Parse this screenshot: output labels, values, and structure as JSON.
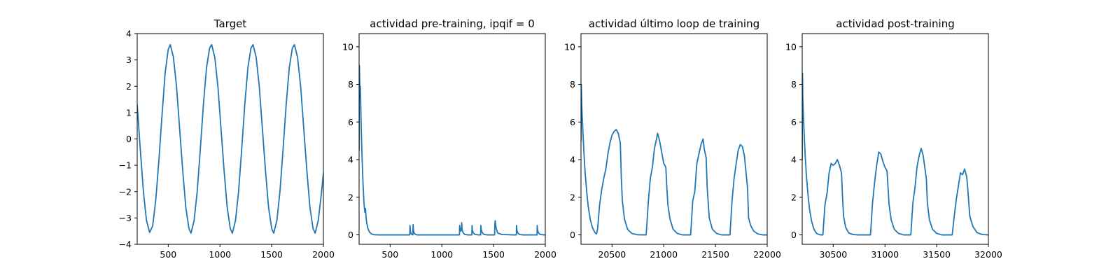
{
  "chart_data": [
    {
      "type": "line",
      "title": "Target",
      "xlim": [
        200,
        2000
      ],
      "ylim": [
        -4,
        4
      ],
      "xticks": [
        500,
        1000,
        1500,
        2000
      ],
      "yticks": [
        -4,
        -3,
        -2,
        -1,
        0,
        1,
        2,
        3,
        4
      ],
      "grid": false,
      "color": "#1f77b4",
      "series": [
        {
          "x": [
            200,
            230,
            260,
            290,
            320,
            350,
            380,
            410,
            440,
            470,
            500,
            520,
            550,
            580,
            610,
            640,
            670,
            700,
            720,
            750,
            780,
            810,
            840,
            870,
            900,
            920,
            950,
            980,
            1010,
            1040,
            1070,
            1100,
            1120,
            1150,
            1180,
            1210,
            1240,
            1270,
            1300,
            1320,
            1350,
            1380,
            1410,
            1440,
            1470,
            1500,
            1520,
            1550,
            1580,
            1610,
            1640,
            1670,
            1700,
            1720,
            1750,
            1780,
            1810,
            1840,
            1870,
            1900,
            1920,
            1950,
            1980,
            2000
          ],
          "y": [
            1.3,
            -0.4,
            -2.0,
            -3.1,
            -3.55,
            -3.3,
            -2.3,
            -0.8,
            0.9,
            2.5,
            3.4,
            3.58,
            3.1,
            2.0,
            0.4,
            -1.2,
            -2.6,
            -3.4,
            -3.58,
            -3.1,
            -2.0,
            -0.4,
            1.3,
            2.7,
            3.45,
            3.58,
            3.1,
            2.0,
            0.4,
            -1.2,
            -2.6,
            -3.4,
            -3.58,
            -3.1,
            -2.0,
            -0.4,
            1.3,
            2.7,
            3.45,
            3.58,
            3.1,
            2.0,
            0.4,
            -1.2,
            -2.6,
            -3.4,
            -3.58,
            -3.1,
            -2.0,
            -0.4,
            1.3,
            2.7,
            3.45,
            3.58,
            3.1,
            2.0,
            0.4,
            -1.2,
            -2.6,
            -3.4,
            -3.58,
            -3.1,
            -2.1,
            -1.3
          ]
        }
      ]
    },
    {
      "type": "line",
      "title": "actividad pre-training, ipqif = 0",
      "xlim": [
        200,
        2000
      ],
      "ylim": [
        -0.5,
        10.7
      ],
      "xticks": [
        500,
        1000,
        1500,
        2000
      ],
      "yticks": [
        0,
        2,
        4,
        6,
        8,
        10
      ],
      "grid": false,
      "color": "#1f77b4",
      "series": [
        {
          "x": [
            200,
            203,
            206,
            209,
            212,
            215,
            218,
            222,
            226,
            230,
            234,
            238,
            242,
            246,
            250,
            256,
            262,
            268,
            275,
            285,
            300,
            320,
            345,
            400,
            500,
            600,
            690,
            692,
            695,
            700,
            710,
            720,
            722,
            725,
            730,
            745,
            760,
            800,
            900,
            1000,
            1100,
            1170,
            1172,
            1175,
            1185,
            1190,
            1192,
            1195,
            1205,
            1220,
            1250,
            1290,
            1292,
            1295,
            1305,
            1320,
            1360,
            1375,
            1377,
            1380,
            1390,
            1405,
            1440,
            1500,
            1510,
            1512,
            1515,
            1525,
            1540,
            1580,
            1700,
            1720,
            1722,
            1725,
            1735,
            1750,
            1790,
            1900,
            1920,
            1922,
            1925,
            1935,
            1950,
            1990,
            2000
          ],
          "y": [
            4.5,
            9.0,
            8.2,
            7.6,
            7.9,
            7.2,
            6.3,
            5.4,
            4.6,
            3.9,
            3.3,
            2.7,
            2.3,
            1.8,
            1.5,
            1.2,
            1.4,
            0.9,
            0.6,
            0.35,
            0.15,
            0.05,
            0.01,
            0.0,
            0.0,
            0.0,
            0.0,
            0.5,
            0.25,
            0.1,
            0.02,
            0.0,
            0.55,
            0.3,
            0.12,
            0.02,
            0.0,
            0.0,
            0.0,
            0.0,
            0.0,
            0.0,
            0.5,
            0.3,
            0.2,
            0.45,
            0.65,
            0.3,
            0.12,
            0.03,
            0.0,
            0.0,
            0.5,
            0.25,
            0.1,
            0.02,
            0.0,
            0.0,
            0.5,
            0.3,
            0.12,
            0.03,
            0.0,
            0.0,
            0.0,
            0.5,
            0.75,
            0.35,
            0.1,
            0.02,
            0.0,
            0.0,
            0.5,
            0.25,
            0.1,
            0.02,
            0.0,
            0.0,
            0.0,
            0.5,
            0.25,
            0.1,
            0.02,
            0.0,
            0.0
          ]
        }
      ]
    },
    {
      "type": "line",
      "title": "actividad último loop de training",
      "xlim": [
        20200,
        22000
      ],
      "ylim": [
        -0.5,
        10.7
      ],
      "xticks": [
        20500,
        21000,
        21500,
        22000
      ],
      "yticks": [
        0,
        2,
        4,
        6,
        8,
        10
      ],
      "grid": false,
      "color": "#1f77b4",
      "series": [
        {
          "x": [
            20200,
            20203,
            20206,
            20210,
            20215,
            20222,
            20230,
            20240,
            20255,
            20270,
            20290,
            20310,
            20335,
            20350,
            20360,
            20380,
            20400,
            20420,
            20440,
            20460,
            20480,
            20500,
            20520,
            20540,
            20560,
            20580,
            20590,
            20600,
            20620,
            20650,
            20690,
            20740,
            20830,
            20850,
            20870,
            20890,
            20910,
            20930,
            20940,
            20960,
            20980,
            21000,
            21020,
            21030,
            21040,
            21060,
            21090,
            21130,
            21180,
            21260,
            21280,
            21300,
            21320,
            21340,
            21360,
            21380,
            21390,
            21410,
            21420,
            21440,
            21470,
            21510,
            21560,
            21640,
            21660,
            21680,
            21700,
            21720,
            21740,
            21760,
            21780,
            21790,
            21810,
            21820,
            21840,
            21870,
            21910,
            21960,
            22000
          ],
          "y": [
            5.0,
            8.0,
            7.2,
            6.5,
            5.9,
            5.1,
            4.2,
            3.3,
            2.3,
            1.5,
            0.8,
            0.4,
            0.12,
            0.05,
            0.3,
            1.6,
            2.4,
            3.0,
            3.5,
            4.3,
            4.9,
            5.3,
            5.5,
            5.6,
            5.4,
            4.9,
            3.0,
            1.8,
            0.85,
            0.3,
            0.08,
            0.01,
            0.0,
            1.7,
            3.0,
            3.6,
            4.6,
            5.1,
            5.4,
            5.0,
            4.4,
            3.8,
            3.6,
            2.5,
            1.6,
            0.85,
            0.3,
            0.08,
            0.0,
            0.0,
            1.8,
            2.3,
            3.8,
            4.3,
            4.8,
            5.1,
            4.6,
            4.1,
            2.5,
            0.9,
            0.3,
            0.08,
            0.0,
            0.0,
            1.8,
            3.0,
            3.8,
            4.5,
            4.8,
            4.7,
            4.2,
            3.6,
            2.5,
            0.9,
            0.5,
            0.2,
            0.05,
            0.0,
            0.0
          ]
        }
      ]
    },
    {
      "type": "line",
      "title": "actividad post-training",
      "xlim": [
        30200,
        32000
      ],
      "ylim": [
        -0.5,
        10.7
      ],
      "xticks": [
        30500,
        31000,
        31500,
        32000
      ],
      "yticks": [
        0,
        2,
        4,
        6,
        8,
        10
      ],
      "grid": false,
      "color": "#1f77b4",
      "series": [
        {
          "x": [
            30200,
            30203,
            30206,
            30210,
            30215,
            30222,
            30230,
            30240,
            30255,
            30270,
            30290,
            30310,
            30335,
            30360,
            30380,
            30400,
            30420,
            30440,
            30460,
            30480,
            30500,
            30520,
            30540,
            30560,
            30580,
            30590,
            30600,
            30620,
            30650,
            30690,
            30740,
            30800,
            30860,
            30880,
            30900,
            30920,
            30940,
            30960,
            30980,
            31000,
            31020,
            31030,
            31040,
            31060,
            31090,
            31130,
            31180,
            31250,
            31270,
            31290,
            31310,
            31330,
            31350,
            31370,
            31380,
            31400,
            31410,
            31430,
            31460,
            31500,
            31550,
            31650,
            31670,
            31690,
            31710,
            31730,
            31750,
            31770,
            31790,
            31800,
            31820,
            31850,
            31890,
            31940,
            32000
          ],
          "y": [
            4.0,
            8.6,
            7.3,
            6.6,
            5.9,
            5.0,
            4.1,
            3.2,
            2.2,
            1.4,
            0.75,
            0.35,
            0.1,
            0.02,
            0.0,
            0.0,
            1.6,
            2.2,
            3.3,
            3.8,
            3.7,
            3.8,
            4.0,
            3.7,
            3.3,
            2.0,
            1.0,
            0.4,
            0.1,
            0.02,
            0.0,
            0.0,
            0.0,
            1.7,
            2.8,
            3.7,
            4.4,
            4.3,
            3.9,
            3.6,
            3.4,
            2.5,
            1.6,
            0.8,
            0.3,
            0.08,
            0.0,
            0.0,
            1.7,
            2.5,
            3.6,
            4.2,
            4.6,
            4.2,
            3.8,
            3.0,
            1.7,
            0.8,
            0.3,
            0.08,
            0.0,
            0.0,
            1.0,
            1.9,
            2.6,
            3.3,
            3.2,
            3.5,
            3.1,
            2.5,
            1.0,
            0.45,
            0.12,
            0.02,
            0.0
          ]
        }
      ]
    }
  ]
}
